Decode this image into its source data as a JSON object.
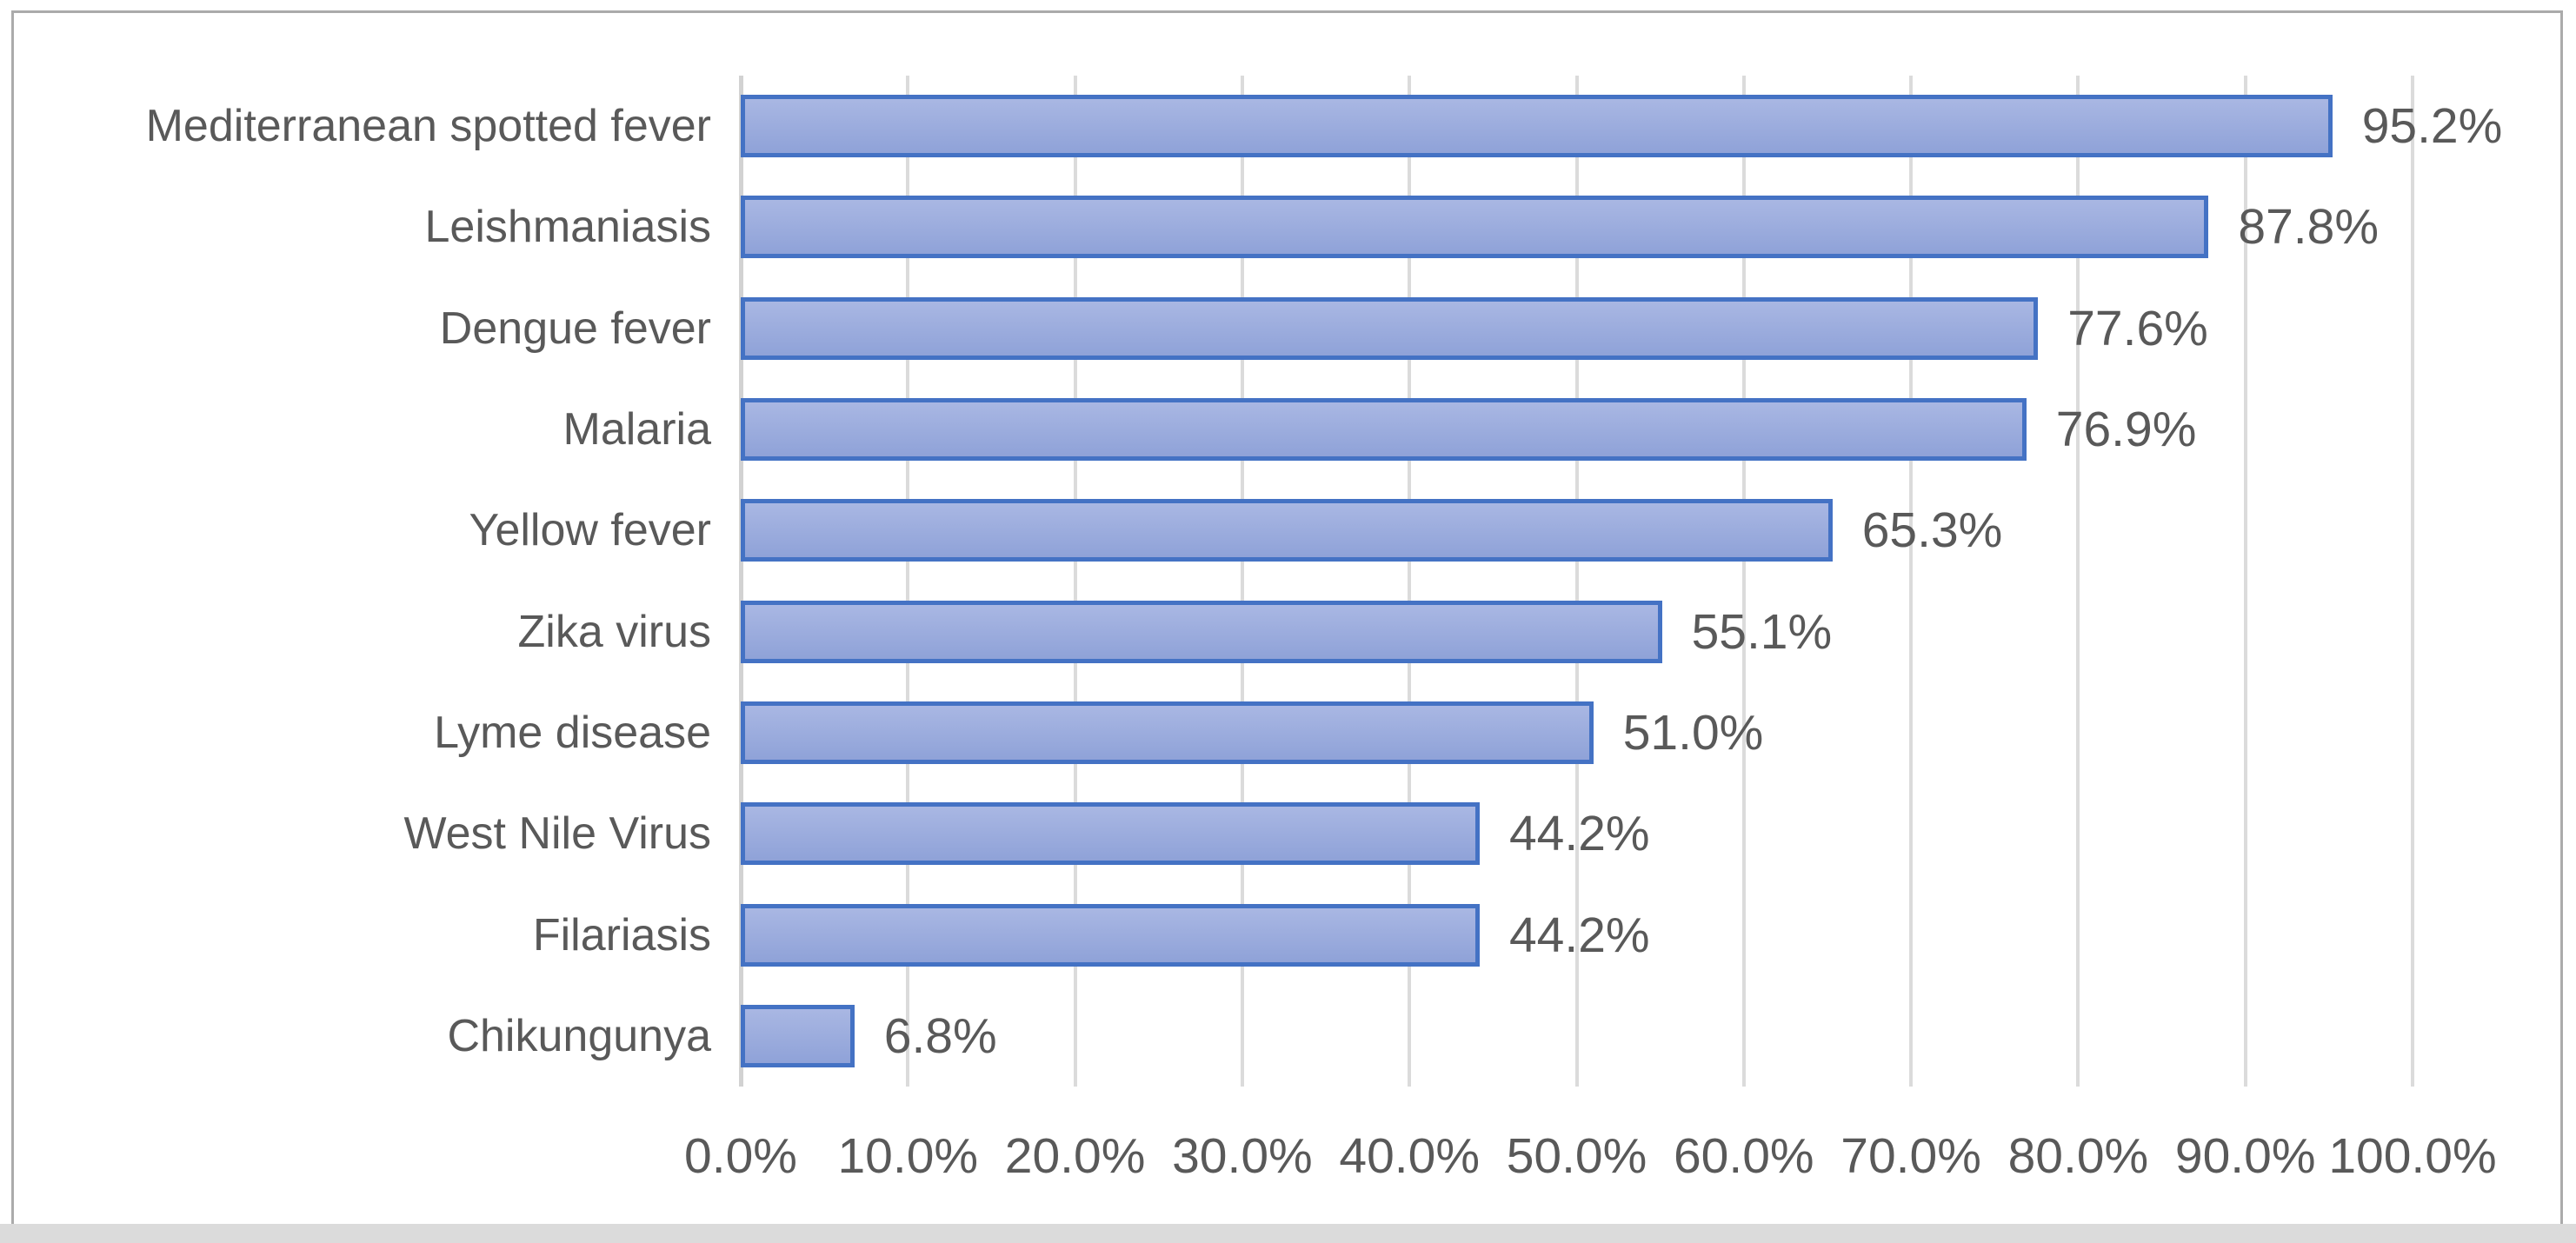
{
  "chart_data": {
    "type": "bar",
    "orientation": "horizontal",
    "title": "",
    "xlabel": "",
    "ylabel": "",
    "xlim": [
      0,
      100
    ],
    "grid": true,
    "x_tick_labels": [
      "0.0%",
      "10.0%",
      "20.0%",
      "30.0%",
      "40.0%",
      "50.0%",
      "60.0%",
      "70.0%",
      "80.0%",
      "90.0%",
      "100.0%"
    ],
    "categories": [
      "Mediterranean spotted fever",
      "Leishmaniasis",
      "Dengue fever",
      "Malaria",
      "Yellow fever",
      "Zika virus",
      "Lyme disease",
      "West Nile Virus",
      "Filariasis",
      "Chikungunya"
    ],
    "values": [
      95.2,
      87.8,
      77.6,
      76.9,
      65.3,
      55.1,
      51.0,
      44.2,
      44.2,
      6.8
    ],
    "data_labels": [
      "95.2%",
      "87.8%",
      "77.6%",
      "76.9%",
      "65.3%",
      "55.1%",
      "51.0%",
      "44.2%",
      "44.2%",
      "6.8%"
    ],
    "colors": {
      "bar_fill_top": "#A9B7E3",
      "bar_fill_bottom": "#8FA2D8",
      "bar_border": "#4472C4",
      "gridline": "#DBDBDB",
      "axis_line": "#D2D2D2",
      "text": "#595959",
      "chart_border": "#ABABAB",
      "bottom_strip": "#DBDBDB",
      "background": "#FFFFFF"
    }
  }
}
